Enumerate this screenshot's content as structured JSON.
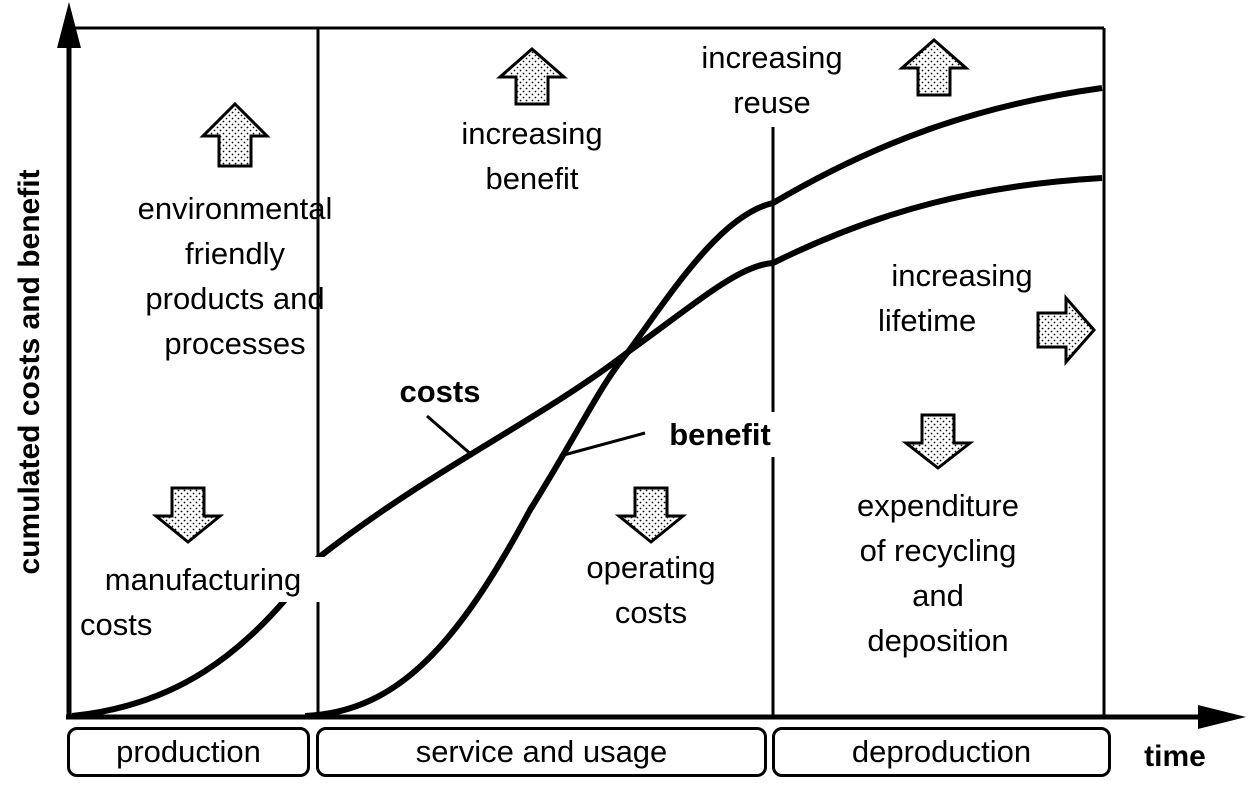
{
  "axes": {
    "y_label": "cumulated costs and benefit",
    "x_label": "time"
  },
  "phases": [
    {
      "label": "production"
    },
    {
      "label": "service and usage"
    },
    {
      "label": "deproduction"
    }
  ],
  "curves": {
    "costs_label": "costs",
    "benefit_label": "benefit"
  },
  "annotations": {
    "environmental": [
      "environmental",
      "friendly",
      "products and",
      "processes"
    ],
    "manufacturing": [
      "manufacturing",
      "costs"
    ],
    "increasing_benefit": [
      "increasing",
      "benefit"
    ],
    "operating": [
      "operating",
      "costs"
    ],
    "increasing_reuse": [
      "increasing",
      "reuse"
    ],
    "increasing_lifetime": [
      "increasing",
      "lifetime"
    ],
    "recycling": [
      "expenditure",
      "of recycling",
      "and",
      "deposition"
    ]
  },
  "colors": {
    "line": "#000000",
    "arrow_fill": "#ffffff",
    "dot": "#000000"
  },
  "icons": {
    "up": "arrow-up-icon",
    "down": "arrow-down-icon",
    "right": "arrow-right-icon"
  }
}
